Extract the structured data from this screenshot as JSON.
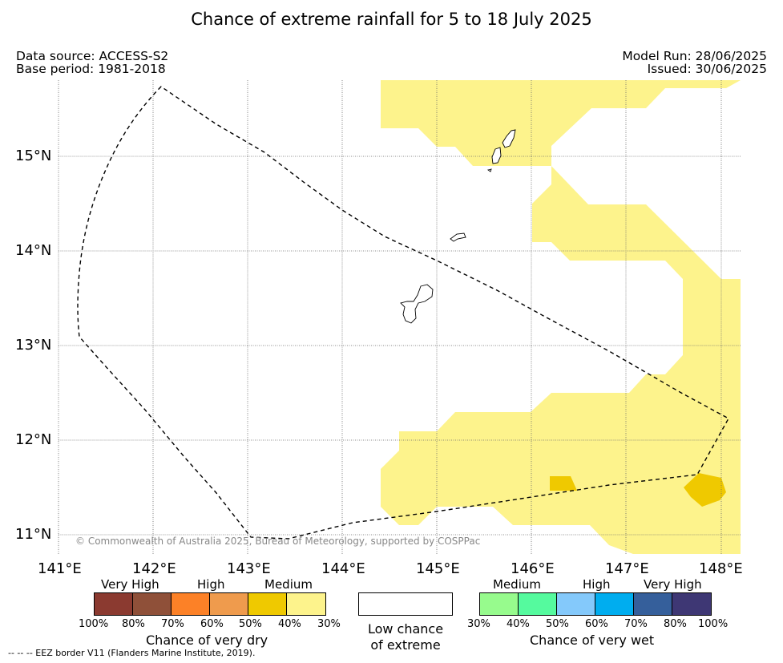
{
  "title": "Chance of extreme rainfall for 5 to 18 July 2025",
  "meta_left": [
    "Data source: ACCESS-S2",
    "Base period: 1981-2018"
  ],
  "meta_right": [
    "Model Run: 28/06/2025",
    "Issued: 30/06/2025"
  ],
  "credit": "© Commonwealth of Australia 2025, Bureau of Meteorology, supported by COSPPac",
  "footer": "--  --  -- EEZ border V11 (Flanders Marine Institute, 2019).",
  "axes": {
    "lon_labels": [
      "141°E",
      "142°E",
      "143°E",
      "144°E",
      "145°E",
      "146°E",
      "147°E",
      "148°E"
    ],
    "lat_labels": [
      "15°N",
      "14°N",
      "13°N",
      "12°N",
      "11°N"
    ]
  },
  "map_data": {
    "lon_range": [
      141,
      148.2
    ],
    "lat_range": [
      10.8,
      15.75
    ],
    "gridlines": true,
    "lon_ticks": [
      141,
      142,
      143,
      144,
      145,
      146,
      147,
      148
    ],
    "lat_ticks": [
      15,
      14,
      13,
      12,
      11
    ]
  },
  "legend": {
    "dry": {
      "categories": [
        "Very High",
        "High",
        "Medium"
      ],
      "ticks": [
        "100%",
        "80%",
        "70%",
        "60%",
        "50%",
        "40%",
        "30%"
      ],
      "colors": [
        "#8b3a30",
        "#8f5039",
        "#fc8127",
        "#ef9b4d",
        "#efc900",
        "#fdf38c"
      ],
      "caption": "Chance of very dry"
    },
    "low": {
      "caption_line1": "Low chance",
      "caption_line2": "of extreme"
    },
    "wet": {
      "categories": [
        "Medium",
        "High",
        "Very High"
      ],
      "ticks": [
        "30%",
        "40%",
        "50%",
        "60%",
        "70%",
        "80%",
        "100%"
      ],
      "colors": [
        "#97fb8d",
        "#55fa9e",
        "#84c9fb",
        "#00adef",
        "#355f9b",
        "#3e3774"
      ],
      "caption": "Chance of very wet"
    }
  },
  "colors": {
    "medium_dry": "#fdf38c",
    "mid_dry": "#efc900"
  }
}
